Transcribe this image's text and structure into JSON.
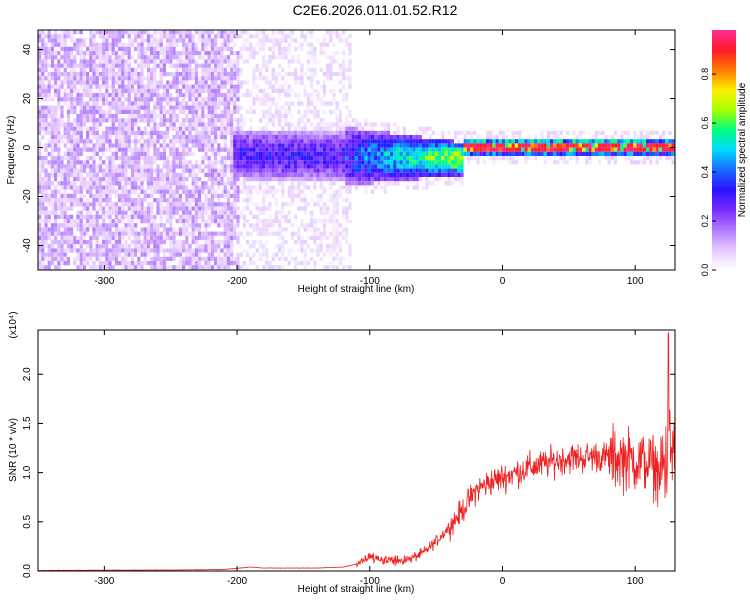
{
  "title": "C2E6.2026.011.01.52.R12",
  "colors": {
    "snr_line": "#ee2222",
    "spectrogram_cmap": [
      "#ffffff",
      "#e6c9ff",
      "#b07bff",
      "#7a2cff",
      "#2b10ff",
      "#1a6aff",
      "#00d9ff",
      "#00ff7f",
      "#a8ff00",
      "#ffee00",
      "#ff7a00",
      "#ff1a2a",
      "#ff2d96"
    ]
  },
  "chart_data": [
    {
      "type": "heatmap",
      "name": "spectrogram",
      "xlabel": "Height of straight line (km)",
      "ylabel": "Frequency (Hz)",
      "xlim": [
        -350,
        130
      ],
      "ylim": [
        -50,
        48
      ],
      "xticks": [
        -300,
        -200,
        -100,
        0,
        100
      ],
      "yticks": [
        -40,
        -20,
        0,
        20,
        40
      ],
      "colorbar": {
        "label": "Normalized spectral amplitude",
        "range": [
          0.0,
          0.98
        ],
        "ticks": [
          0.0,
          0.2,
          0.4,
          0.6,
          0.8
        ]
      },
      "regions": [
        {
          "description": "broadband noise",
          "x": [
            -350,
            -200
          ],
          "freq_spread": 48,
          "amplitude": 0.1
        },
        {
          "description": "fading noise",
          "x": [
            -200,
            -115
          ],
          "freq_spread": 48,
          "amplitude": 0.05
        },
        {
          "description": "signal band",
          "x": [
            -200,
            130
          ],
          "center_freq": 0,
          "amplitude_peak": 0.98
        }
      ]
    },
    {
      "type": "line",
      "name": "snr",
      "xlabel": "Height of straight line (km)",
      "ylabel": "SNR (10 * v/v)",
      "scale_label": "(x10⁴)",
      "xlim": [
        -350,
        130
      ],
      "ylim": [
        0,
        2.45
      ],
      "xticks": [
        -300,
        -200,
        -100,
        0,
        100
      ],
      "yticks": [
        "0.0",
        "0.5",
        "1.0",
        "1.5",
        "2.0"
      ],
      "ytick_values": [
        0.0,
        0.5,
        1.0,
        1.5,
        2.0
      ],
      "series": [
        {
          "name": "SNR",
          "x": [
            -350,
            -300,
            -250,
            -210,
            -190,
            -180,
            -160,
            -140,
            -120,
            -110,
            -100,
            -90,
            -80,
            -70,
            -60,
            -50,
            -40,
            -30,
            -20,
            -10,
            0,
            10,
            20,
            30,
            40,
            50,
            60,
            70,
            80,
            90,
            100,
            110,
            115,
            120,
            125,
            130
          ],
          "y": [
            0.005,
            0.008,
            0.01,
            0.015,
            0.04,
            0.03,
            0.03,
            0.03,
            0.04,
            0.07,
            0.15,
            0.12,
            0.1,
            0.12,
            0.18,
            0.3,
            0.45,
            0.62,
            0.82,
            0.9,
            0.95,
            1.0,
            1.05,
            1.08,
            1.12,
            1.15,
            1.15,
            1.17,
            1.15,
            1.15,
            1.12,
            1.1,
            1.05,
            1.0,
            1.2,
            1.2
          ]
        }
      ]
    }
  ]
}
